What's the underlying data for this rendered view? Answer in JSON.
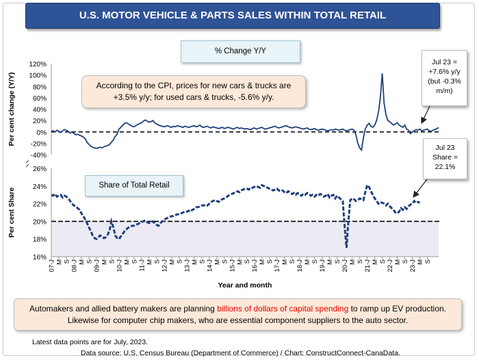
{
  "header": {
    "title": "U.S. MOTOR VEHICLE & PARTS SALES WITHIN TOTAL RETAIL"
  },
  "panel_top": {
    "subtitle": "% Change Y/Y",
    "note": "According to the CPI, prices for new cars & trucks are +3.5% y/y; for used cars & trucks, -5.6% y/y.",
    "callout": "Jul 23 = +7.6% y/y (but -0.3% m/m)"
  },
  "panel_bottom": {
    "subtitle": "Share of Total Retail",
    "callout": "Jul 23 Share = 22.1%"
  },
  "bottom_note": {
    "pre": "Automakers and allied battery makers are planning ",
    "highlight": "billions of dollars of capital spending",
    "post": " to ramp up EV production. Likewise for computer chip makers, who are essential component suppliers to the auto sector."
  },
  "footer": {
    "latest": "Latest data points are for July, 2023.",
    "source": "Data source: U.S. Census Bureau (Department of Commerce) / Chart: ConstructConnect-CanaData."
  },
  "colors": {
    "banner": "#2e5396",
    "line": "#1f3f7a",
    "highlight": "#e00000",
    "share_band": "#ecebf4"
  },
  "chart_data": [
    {
      "type": "line",
      "title": "% Change Y/Y",
      "ylabel": "Per cent change (Y/Y)",
      "ylim": [
        -40,
        120
      ],
      "yticks": [
        -40,
        -20,
        0,
        20,
        40,
        60,
        80,
        100,
        120
      ],
      "ytick_labels": [
        "-40%",
        "-20%",
        "0%",
        "20%",
        "40%",
        "60%",
        "80%",
        "100%",
        "120%"
      ],
      "reference_line": 0,
      "series": [
        {
          "x_start": "2007-01",
          "step": "month",
          "values": [
            1,
            2,
            0,
            3,
            1,
            -1,
            2,
            4,
            3,
            1,
            -2,
            0,
            -3,
            -5,
            -4,
            -6,
            -7,
            -9,
            -12,
            -18,
            -22,
            -25,
            -27,
            -28,
            -29,
            -28,
            -27,
            -28,
            -26,
            -25,
            -24,
            -22,
            -18,
            -14,
            -8,
            -4,
            5,
            8,
            12,
            15,
            16,
            14,
            12,
            10,
            9,
            11,
            13,
            15,
            16,
            19,
            21,
            19,
            17,
            18,
            20,
            16,
            14,
            12,
            11,
            10,
            9,
            10,
            11,
            9,
            8,
            10,
            9,
            11,
            10,
            9,
            8,
            10,
            9,
            8,
            9,
            10,
            11,
            9,
            10,
            12,
            9,
            8,
            9,
            10,
            8,
            7,
            9,
            8,
            7,
            6,
            7,
            8,
            6,
            7,
            8,
            7,
            6,
            5,
            7,
            8,
            6,
            7,
            6,
            5,
            6,
            5,
            4,
            6,
            7,
            5,
            6,
            7,
            8,
            6,
            5,
            6,
            7,
            8,
            9,
            10,
            8,
            7,
            8,
            9,
            10,
            11,
            9,
            8,
            7,
            8,
            9,
            8,
            7,
            6,
            5,
            6,
            7,
            5,
            4,
            5,
            6,
            4,
            3,
            4,
            5,
            4,
            3,
            2,
            3,
            4,
            3,
            5,
            4,
            3,
            4,
            5,
            3,
            2,
            3,
            4,
            5,
            3,
            -5,
            -20,
            -28,
            -32,
            -10,
            5,
            12,
            15,
            10,
            8,
            12,
            20,
            35,
            60,
            103,
            50,
            30,
            20,
            18,
            15,
            12,
            14,
            16,
            12,
            10,
            8,
            12,
            5,
            3,
            -3,
            0,
            2,
            4,
            3,
            5,
            2,
            3,
            4,
            5,
            2,
            1,
            3,
            4,
            6,
            7.6
          ]
        }
      ]
    },
    {
      "type": "line",
      "title": "Share of Total Retail",
      "ylabel": "Per cent Share",
      "ylim": [
        16,
        26
      ],
      "yticks": [
        16,
        18,
        20,
        22,
        24,
        26
      ],
      "ytick_labels": [
        "16%",
        "18%",
        "20%",
        "22%",
        "24%",
        "26%"
      ],
      "reference_line": 20,
      "xlabel": "Year and month",
      "xtick_labels": [
        "07-J",
        "M",
        "S",
        "08-J",
        "M",
        "S",
        "09-J",
        "M",
        "S",
        "10-J",
        "M",
        "S",
        "11-J",
        "M",
        "S",
        "12-J",
        "M",
        "S",
        "13-J",
        "M",
        "S",
        "14-J",
        "M",
        "S",
        "15-J",
        "M",
        "S",
        "16-J",
        "M",
        "S",
        "17-J",
        "M",
        "S",
        "18-J",
        "M",
        "S",
        "19-J",
        "M",
        "S",
        "20-J",
        "M",
        "S",
        "21-J",
        "M",
        "S",
        "22-J",
        "M",
        "S",
        "23-J",
        "M",
        "S"
      ],
      "series": [
        {
          "x_start": "2007-01",
          "step": "month",
          "values": [
            23.0,
            22.9,
            23.1,
            22.8,
            22.9,
            23.0,
            22.7,
            22.9,
            22.8,
            22.6,
            22.3,
            22.0,
            21.8,
            21.7,
            21.5,
            21.3,
            20.9,
            20.6,
            20.2,
            19.8,
            19.3,
            18.9,
            18.4,
            18.1,
            18.0,
            18.2,
            18.4,
            18.3,
            18.1,
            18.2,
            18.5,
            19.0,
            20.0,
            19.3,
            18.4,
            18.1,
            18.0,
            18.3,
            18.6,
            18.9,
            19.1,
            19.3,
            19.4,
            19.5,
            19.5,
            19.6,
            19.7,
            19.8,
            19.9,
            20.0,
            20.1,
            19.9,
            19.8,
            19.9,
            20.0,
            19.8,
            19.6,
            19.5,
            19.8,
            20.0,
            20.2,
            20.3,
            20.4,
            20.5,
            20.6,
            20.6,
            20.7,
            20.8,
            20.8,
            20.9,
            21.0,
            21.1,
            21.1,
            21.2,
            21.1,
            21.3,
            21.4,
            21.6,
            21.6,
            21.7,
            21.8,
            21.8,
            21.9,
            21.8,
            22.0,
            22.2,
            22.3,
            22.4,
            22.3,
            22.2,
            22.4,
            22.5,
            22.6,
            22.7,
            22.9,
            23.0,
            23.1,
            23.2,
            23.3,
            23.4,
            23.3,
            23.5,
            23.6,
            23.7,
            23.7,
            23.6,
            23.8,
            23.8,
            23.9,
            24.0,
            23.9,
            23.8,
            24.1,
            24.0,
            23.9,
            23.8,
            23.7,
            23.6,
            23.5,
            23.6,
            23.7,
            23.5,
            23.4,
            23.5,
            23.3,
            23.2,
            23.4,
            23.3,
            23.1,
            23.2,
            23.0,
            23.2,
            23.1,
            22.9,
            23.1,
            23.0,
            23.2,
            23.1,
            22.9,
            23.0,
            22.8,
            23.0,
            22.9,
            23.1,
            23.0,
            22.8,
            22.9,
            23.1,
            22.7,
            22.9,
            23.0,
            22.6,
            22.9,
            22.7,
            22.5,
            22.3,
            19.5,
            17.0,
            20.0,
            22.4,
            22.6,
            22.5,
            22.3,
            22.4,
            22.6,
            22.5,
            22.4,
            23.3,
            24.1,
            23.9,
            23.4,
            23.0,
            22.6,
            22.3,
            22.0,
            22.2,
            22.1,
            22.0,
            21.8,
            22.0,
            21.7,
            21.5,
            21.3,
            21.0,
            20.9,
            21.1,
            21.5,
            21.3,
            21.6,
            21.4,
            21.7,
            21.9,
            22.0,
            22.3,
            22.1,
            22.2,
            22.1
          ]
        }
      ]
    }
  ]
}
